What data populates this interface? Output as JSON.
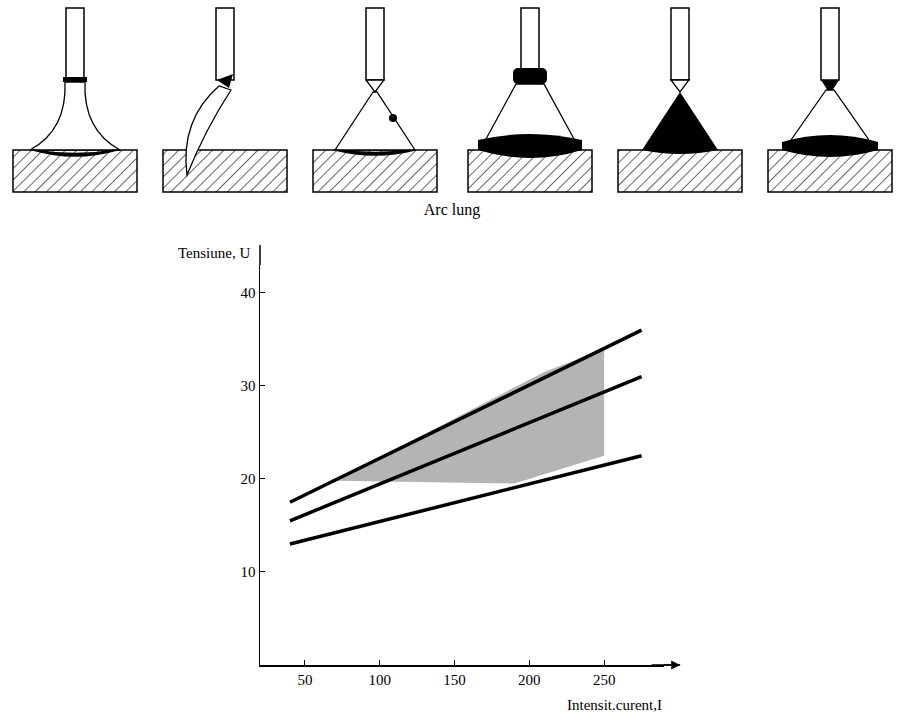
{
  "diagram": {
    "caption": "Arc lung"
  },
  "chart_data": {
    "type": "line",
    "x_label": "Intensit.curent,I",
    "y_label": "Tensiune, U",
    "x": [
      40,
      275
    ],
    "series": [
      {
        "values": [
          17.5,
          36
        ],
        "color": "#000000"
      },
      {
        "values": [
          15.5,
          31
        ],
        "color": "#000000"
      },
      {
        "values": [
          13,
          22.5
        ],
        "color": "#000000"
      }
    ],
    "region": {
      "x": [
        70,
        190,
        250,
        250,
        210,
        70
      ],
      "y": [
        19.8,
        19.5,
        22.5,
        34,
        31.5,
        19.8
      ],
      "color": "#b4b4b4"
    },
    "xlim": [
      20,
      290
    ],
    "xticks": [
      50,
      100,
      150,
      200,
      250
    ],
    "ylim": [
      0,
      43
    ],
    "yticks": [
      10,
      20,
      30,
      40
    ],
    "grid": false
  }
}
